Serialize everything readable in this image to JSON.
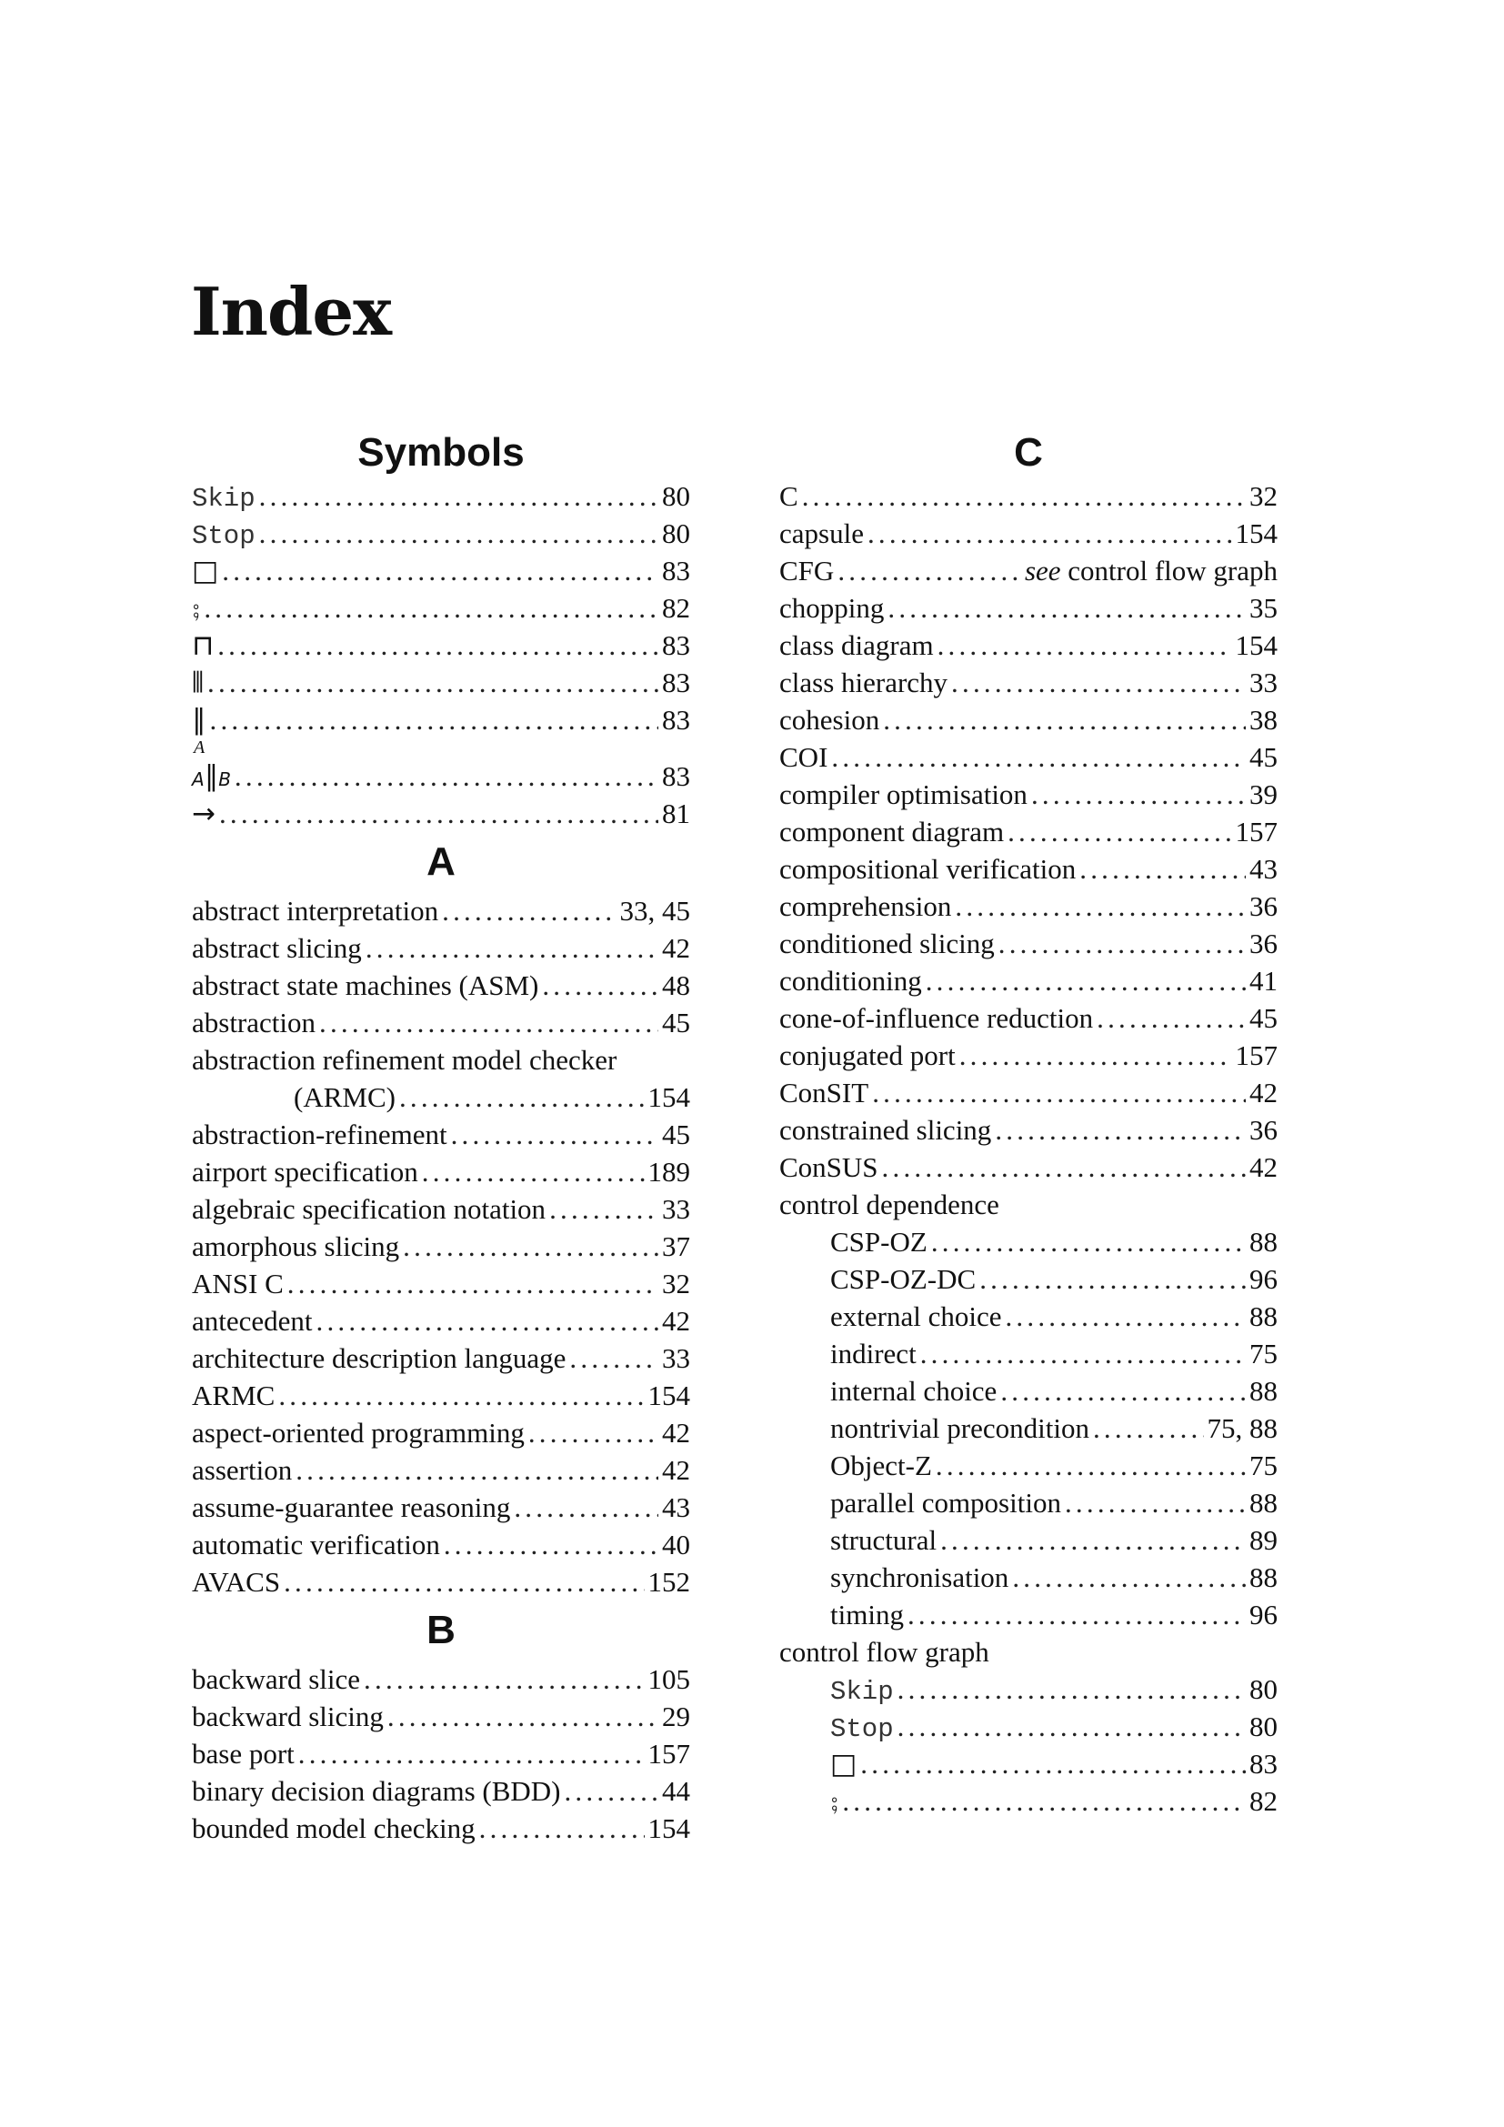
{
  "page_title": "Index",
  "left_column": [
    {
      "heading": "Symbols",
      "entries": [
        {
          "term": "Skip",
          "page": "80",
          "mono": true
        },
        {
          "term": "Stop",
          "page": "80",
          "mono": true
        },
        {
          "term": "□",
          "page": "83",
          "symbol": true
        },
        {
          "term": "⨟",
          "page": "82",
          "symbol": true
        },
        {
          "term": "⊓",
          "page": "83",
          "symbol": true
        },
        {
          "term": "⫴",
          "page": "83",
          "symbol": true
        },
        {
          "term": "∥",
          "page": "83",
          "symbol": true
        },
        {
          "term": "∥",
          "page": "83",
          "symbol": true,
          "sup": "A",
          "sub_left": "A",
          "sub_right": "B"
        },
        {
          "term": "→",
          "page": "81",
          "symbol": true
        }
      ]
    },
    {
      "heading": "A",
      "entries": [
        {
          "term": "abstract interpretation",
          "page": "33, 45"
        },
        {
          "term": "abstract slicing",
          "page": "42"
        },
        {
          "term": "abstract state machines (ASM)",
          "page": "48"
        },
        {
          "term": "abstraction",
          "page": "45"
        },
        {
          "term": "abstraction refinement model checker",
          "continuation": "(ARMC)",
          "page": "154"
        },
        {
          "term": "abstraction-refinement",
          "page": "45"
        },
        {
          "term": "airport specification",
          "page": "189"
        },
        {
          "term": "algebraic specification notation",
          "page": "33"
        },
        {
          "term": "amorphous slicing",
          "page": "37"
        },
        {
          "term": "ANSI C",
          "page": "32"
        },
        {
          "term": "antecedent",
          "page": "42"
        },
        {
          "term": "architecture description language",
          "page": "33"
        },
        {
          "term": "ARMC",
          "page": "154"
        },
        {
          "term": "aspect-oriented programming",
          "page": "42"
        },
        {
          "term": "assertion",
          "page": "42"
        },
        {
          "term": "assume-guarantee reasoning",
          "page": "43"
        },
        {
          "term": "automatic verification",
          "page": "40"
        },
        {
          "term": "AVACS",
          "page": "152"
        }
      ]
    },
    {
      "heading": "B",
      "entries": [
        {
          "term": "backward slice",
          "page": "105"
        },
        {
          "term": "backward slicing",
          "page": "29"
        },
        {
          "term": "base port",
          "page": "157"
        },
        {
          "term": "binary decision diagrams (BDD)",
          "page": "44"
        },
        {
          "term": "bounded model checking",
          "page": "154"
        }
      ]
    }
  ],
  "right_column": [
    {
      "heading": "C",
      "entries": [
        {
          "term": "C",
          "page": "32"
        },
        {
          "term": "capsule",
          "page": "154"
        },
        {
          "term": "CFG",
          "see": "see",
          "page": "control flow graph"
        },
        {
          "term": "chopping",
          "page": "35"
        },
        {
          "term": "class diagram",
          "page": "154"
        },
        {
          "term": "class hierarchy",
          "page": "33"
        },
        {
          "term": "cohesion",
          "page": "38"
        },
        {
          "term": "COI",
          "page": "45"
        },
        {
          "term": "compiler optimisation",
          "page": "39"
        },
        {
          "term": "component diagram",
          "page": "157"
        },
        {
          "term": "compositional verification",
          "page": "43"
        },
        {
          "term": "comprehension",
          "page": "36"
        },
        {
          "term": "conditioned slicing",
          "page": "36"
        },
        {
          "term": "conditioning",
          "page": "41"
        },
        {
          "term": "cone-of-influence reduction",
          "page": "45"
        },
        {
          "term": "conjugated port",
          "page": "157"
        },
        {
          "term": "ConSIT",
          "page": "42"
        },
        {
          "term": "constrained slicing",
          "page": "36"
        },
        {
          "term": "ConSUS",
          "page": "42"
        },
        {
          "term": "control dependence",
          "header_only": true
        },
        {
          "term": "CSP-OZ",
          "page": "88",
          "indent": true
        },
        {
          "term": "CSP-OZ-DC",
          "page": "96",
          "indent": true
        },
        {
          "term": "external choice",
          "page": "88",
          "indent": true
        },
        {
          "term": "indirect",
          "page": "75",
          "indent": true
        },
        {
          "term": "internal choice",
          "page": "88",
          "indent": true
        },
        {
          "term": "nontrivial precondition",
          "page": "75, 88",
          "indent": true
        },
        {
          "term": "Object-Z",
          "page": "75",
          "indent": true
        },
        {
          "term": "parallel composition",
          "page": "88",
          "indent": true
        },
        {
          "term": "structural",
          "page": "89",
          "indent": true
        },
        {
          "term": "synchronisation",
          "page": "88",
          "indent": true
        },
        {
          "term": "timing",
          "page": "96",
          "indent": true
        },
        {
          "term": "control flow graph",
          "header_only": true
        },
        {
          "term": "Skip",
          "page": "80",
          "indent": true,
          "mono": true
        },
        {
          "term": "Stop",
          "page": "80",
          "indent": true,
          "mono": true
        },
        {
          "term": "□",
          "page": "83",
          "indent": true,
          "symbol": true
        },
        {
          "term": "⨟",
          "page": "82",
          "indent": true,
          "symbol": true
        }
      ]
    }
  ]
}
